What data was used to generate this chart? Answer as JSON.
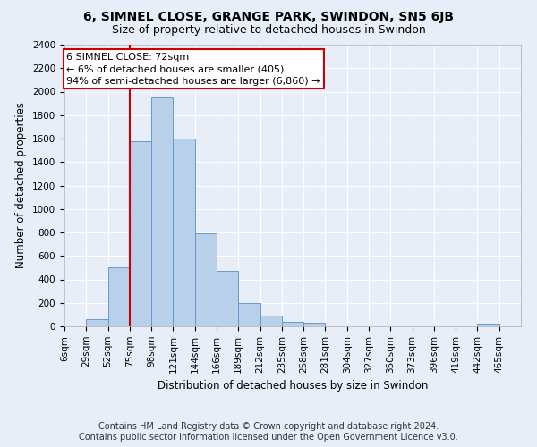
{
  "title": "6, SIMNEL CLOSE, GRANGE PARK, SWINDON, SN5 6JB",
  "subtitle": "Size of property relative to detached houses in Swindon",
  "xlabel": "Distribution of detached houses by size in Swindon",
  "ylabel": "Number of detached properties",
  "footer_line1": "Contains HM Land Registry data © Crown copyright and database right 2024.",
  "footer_line2": "Contains public sector information licensed under the Open Government Licence v3.0.",
  "categories": [
    "6sqm",
    "29sqm",
    "52sqm",
    "75sqm",
    "98sqm",
    "121sqm",
    "144sqm",
    "166sqm",
    "189sqm",
    "212sqm",
    "235sqm",
    "258sqm",
    "281sqm",
    "304sqm",
    "327sqm",
    "350sqm",
    "373sqm",
    "396sqm",
    "419sqm",
    "442sqm",
    "465sqm"
  ],
  "values": [
    0,
    60,
    500,
    1580,
    1950,
    1600,
    790,
    470,
    200,
    95,
    35,
    30,
    0,
    0,
    0,
    0,
    0,
    0,
    0,
    20,
    0
  ],
  "bar_color": "#b8d0ea",
  "bar_edge_color": "#6699cc",
  "ylim": [
    0,
    2400
  ],
  "yticks": [
    0,
    200,
    400,
    600,
    800,
    1000,
    1200,
    1400,
    1600,
    1800,
    2000,
    2200,
    2400
  ],
  "red_line_index": 3,
  "annotation_line1": "6 SIMNEL CLOSE: 72sqm",
  "annotation_line2": "← 6% of detached houses are smaller (405)",
  "annotation_line3": "94% of semi-detached houses are larger (6,860) →",
  "annotation_box_color": "#ffffff",
  "annotation_box_edge": "#cc0000",
  "red_line_color": "#cc0000",
  "bg_color": "#e8eef8",
  "plot_bg_color": "#e8eef8",
  "grid_color": "#ffffff",
  "title_fontsize": 10,
  "subtitle_fontsize": 9,
  "axis_label_fontsize": 8.5,
  "tick_fontsize": 7.5,
  "footer_fontsize": 7,
  "annotation_fontsize": 8
}
